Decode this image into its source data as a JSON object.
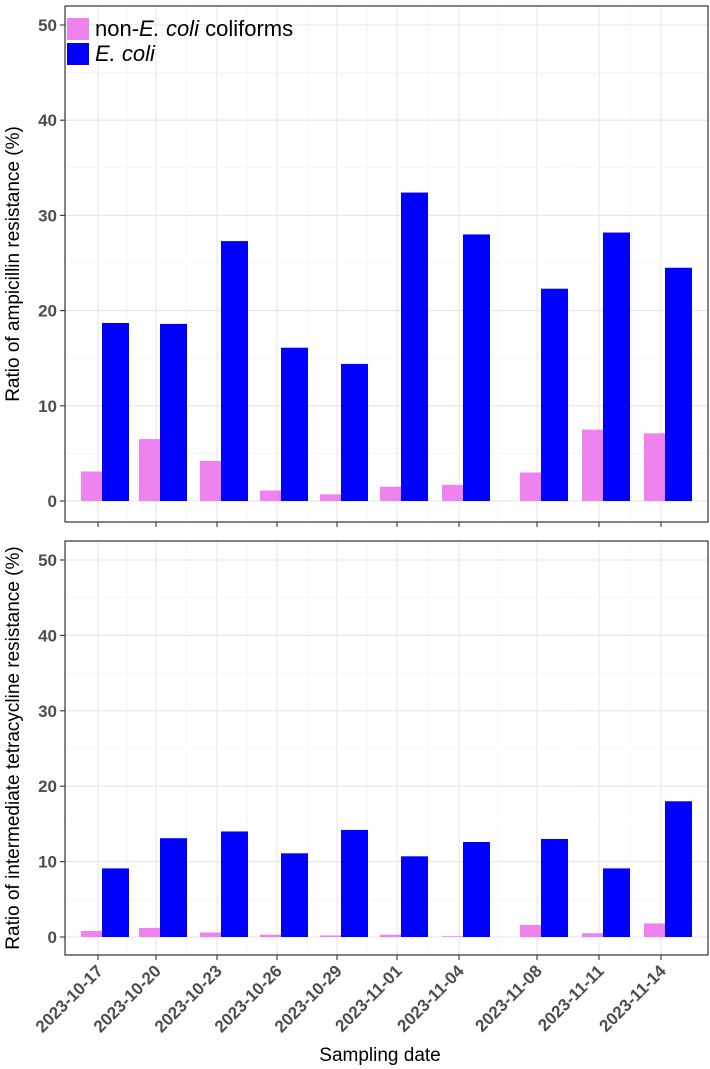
{
  "chart_data": {
    "type": "bar",
    "categories": [
      "2023-10-17",
      "2023-10-20",
      "2023-10-23",
      "2023-10-26",
      "2023-10-29",
      "2023-11-01",
      "2023-11-04",
      "2023-11-08",
      "2023-11-11",
      "2023-11-14"
    ],
    "x_is_date": true,
    "xlabel": "Sampling date",
    "ylim": [
      0,
      50
    ],
    "yticks": [
      0,
      10,
      20,
      30,
      40,
      50
    ],
    "grid": true,
    "legend": {
      "position": "top-left",
      "entries": [
        {
          "prefix": "non-",
          "italic": "E. coli",
          "suffix": " coliforms",
          "color": "#ee82ee"
        },
        {
          "prefix": "",
          "italic": "E. coli",
          "suffix": "",
          "color": "#0000ff"
        }
      ]
    },
    "panels": [
      {
        "ylabel": "Ratio of ampicillin resistance (%)",
        "series": [
          {
            "values": [
              3.1,
              6.5,
              4.2,
              1.1,
              0.7,
              1.5,
              1.7,
              3.0,
              7.5,
              7.1
            ],
            "color": "#ee82ee"
          },
          {
            "values": [
              18.7,
              18.6,
              27.3,
              16.1,
              14.4,
              32.4,
              28.0,
              22.3,
              28.2,
              24.5
            ],
            "color": "#0000ff"
          }
        ]
      },
      {
        "ylabel": "Ratio of intermediate tetracycline resistance (%)",
        "series": [
          {
            "values": [
              0.8,
              1.2,
              0.6,
              0.3,
              0.2,
              0.3,
              0.1,
              1.6,
              0.5,
              1.8
            ],
            "color": "#ee82ee"
          },
          {
            "values": [
              9.1,
              13.1,
              14.0,
              11.1,
              14.2,
              10.7,
              12.6,
              13.0,
              9.1,
              18.0
            ],
            "color": "#0000ff"
          }
        ]
      }
    ]
  }
}
